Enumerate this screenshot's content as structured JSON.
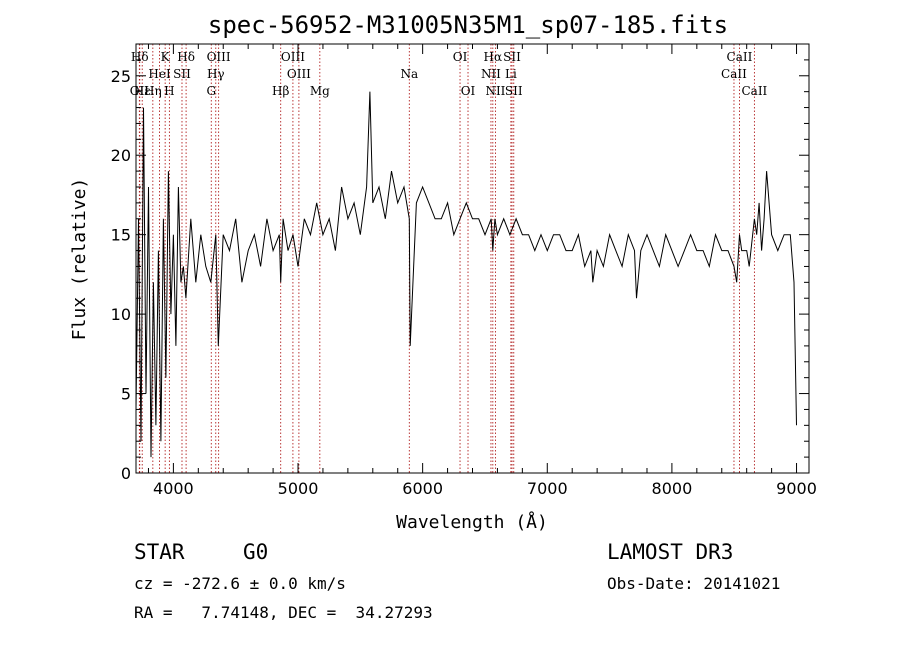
{
  "chart_data": {
    "type": "line",
    "title": "spec-56952-M31005N35M1_sp07-185.fits",
    "xlabel": "Wavelength (Å)",
    "ylabel": "Flux (relative)",
    "xlim": [
      3700,
      9100
    ],
    "ylim": [
      0,
      27
    ],
    "xticks": [
      4000,
      5000,
      6000,
      7000,
      8000,
      9000
    ],
    "xtick_labels": [
      "4000",
      "5000",
      "6000",
      "7000",
      "8000",
      "9000"
    ],
    "yticks": [
      0,
      5,
      10,
      15,
      20,
      25
    ],
    "ytick_labels": [
      "0",
      "5",
      "10",
      "15",
      "20",
      "25"
    ],
    "line_color": "#000000",
    "marker_color": "#b22222",
    "series": [
      {
        "name": "flux",
        "x": [
          3700,
          3720,
          3740,
          3760,
          3780,
          3800,
          3820,
          3840,
          3860,
          3880,
          3900,
          3920,
          3940,
          3960,
          3980,
          4000,
          4020,
          4040,
          4060,
          4080,
          4100,
          4140,
          4180,
          4220,
          4260,
          4300,
          4340,
          4360,
          4400,
          4450,
          4500,
          4550,
          4600,
          4650,
          4700,
          4750,
          4800,
          4850,
          4861,
          4880,
          4920,
          4960,
          5000,
          5050,
          5100,
          5150,
          5200,
          5250,
          5300,
          5350,
          5400,
          5450,
          5500,
          5550,
          5577,
          5600,
          5650,
          5700,
          5750,
          5800,
          5850,
          5893,
          5900,
          5950,
          6000,
          6050,
          6100,
          6150,
          6200,
          6250,
          6300,
          6350,
          6400,
          6450,
          6500,
          6550,
          6563,
          6580,
          6600,
          6650,
          6700,
          6750,
          6800,
          6850,
          6900,
          6950,
          7000,
          7050,
          7100,
          7150,
          7200,
          7250,
          7300,
          7350,
          7365,
          7400,
          7450,
          7500,
          7550,
          7600,
          7650,
          7700,
          7716,
          7750,
          7800,
          7850,
          7900,
          7950,
          8000,
          8050,
          8100,
          8150,
          8200,
          8250,
          8300,
          8350,
          8400,
          8450,
          8498,
          8520,
          8542,
          8560,
          8600,
          8620,
          8662,
          8680,
          8700,
          8720,
          8740,
          8760,
          8800,
          8850,
          8900,
          8950,
          8980,
          9000
        ],
        "values": [
          4,
          16,
          2,
          23,
          5,
          18,
          1,
          12,
          3,
          14,
          2,
          16,
          6,
          19,
          10,
          15,
          8,
          18,
          12,
          13,
          11,
          16,
          12,
          15,
          13,
          12,
          15,
          8,
          15,
          14,
          16,
          12,
          14,
          15,
          13,
          16,
          14,
          15,
          12,
          16,
          14,
          15,
          13,
          16,
          15,
          17,
          15,
          16,
          14,
          18,
          16,
          17,
          15,
          18,
          24,
          17,
          18,
          16,
          19,
          17,
          18,
          16,
          8,
          17,
          18,
          17,
          16,
          16,
          17,
          15,
          16,
          17,
          16,
          16,
          15,
          16,
          14,
          16,
          15,
          16,
          15,
          16,
          15,
          15,
          14,
          15,
          14,
          15,
          15,
          14,
          14,
          15,
          13,
          14,
          12,
          14,
          13,
          15,
          14,
          13,
          15,
          14,
          11,
          14,
          15,
          14,
          13,
          15,
          14,
          13,
          14,
          15,
          14,
          14,
          13,
          15,
          14,
          14,
          13,
          12,
          15,
          14,
          14,
          13,
          16,
          15,
          17,
          14,
          16,
          19,
          15,
          14,
          15,
          15,
          12,
          3
        ]
      }
    ],
    "line_markers": [
      {
        "label": "Hδ",
        "x": 3730,
        "row": 1
      },
      {
        "label": "K",
        "x": 3934,
        "row": 1
      },
      {
        "label": "Hδ",
        "x": 4102,
        "row": 1
      },
      {
        "label": "OIII",
        "x": 4363,
        "row": 1
      },
      {
        "label": "OIII",
        "x": 4959,
        "row": 1
      },
      {
        "label": "OI",
        "x": 6300,
        "row": 1
      },
      {
        "label": "Hα",
        "x": 6563,
        "row": 1
      },
      {
        "label": "SII",
        "x": 6717,
        "row": 1
      },
      {
        "label": "CaII",
        "x": 8542,
        "row": 1
      },
      {
        "label": "HeI",
        "x": 3889,
        "row": 2
      },
      {
        "label": "SII",
        "x": 4069,
        "row": 2
      },
      {
        "label": "Hγ",
        "x": 4340,
        "row": 2
      },
      {
        "label": "OIII",
        "x": 5007,
        "row": 2
      },
      {
        "label": "Na",
        "x": 5893,
        "row": 2
      },
      {
        "label": "NII",
        "x": 6548,
        "row": 2
      },
      {
        "label": "Li",
        "x": 6708,
        "row": 2
      },
      {
        "label": "CaII",
        "x": 8498,
        "row": 2
      },
      {
        "label": "OII",
        "x": 3727,
        "row": 3
      },
      {
        "label": "Hε",
        "x": 3750,
        "row": 3
      },
      {
        "label": "Hη",
        "x": 3835,
        "row": 3
      },
      {
        "label": "H",
        "x": 3968,
        "row": 3
      },
      {
        "label": "G",
        "x": 4304,
        "row": 3
      },
      {
        "label": "Hβ",
        "x": 4861,
        "row": 3
      },
      {
        "label": "Mg",
        "x": 5175,
        "row": 3
      },
      {
        "label": "OI",
        "x": 6364,
        "row": 3
      },
      {
        "label": "NII",
        "x": 6584,
        "row": 3
      },
      {
        "label": "SII",
        "x": 6731,
        "row": 3
      },
      {
        "label": "CaII",
        "x": 8662,
        "row": 3
      }
    ]
  },
  "info": {
    "object_class": "STAR",
    "subclass": "G0",
    "cz": "cz = -272.6 ± 0.0 km/s",
    "coords": "RA =   7.74148, DEC =  34.27293",
    "survey": "LAMOST DR3",
    "obs_date": "Obs-Date: 20141021"
  }
}
